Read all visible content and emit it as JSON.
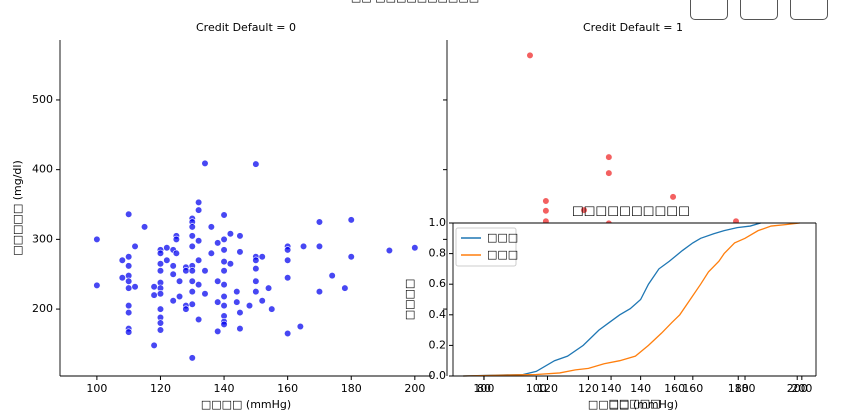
{
  "figure_title": "□□ □□□□□□□□□□",
  "chart_data": [
    {
      "type": "scatter",
      "title": "Credit Default = 0",
      "xlabel": "□□□□ (mmHg)",
      "ylabel": "□□□□□ (mg/dl)",
      "color": "#0000ee",
      "x": [
        100,
        100,
        108,
        108,
        110,
        110,
        110,
        110,
        110,
        110,
        110,
        110,
        110,
        110,
        112,
        112,
        115,
        118,
        118,
        118,
        120,
        120,
        120,
        120,
        120,
        120,
        120,
        120,
        120,
        120,
        120,
        122,
        122,
        124,
        124,
        124,
        124,
        125,
        125,
        125,
        126,
        126,
        128,
        128,
        128,
        128,
        130,
        130,
        130,
        130,
        130,
        130,
        130,
        130,
        130,
        130,
        130,
        132,
        132,
        132,
        132,
        132,
        132,
        134,
        134,
        134,
        136,
        136,
        138,
        138,
        138,
        138,
        140,
        140,
        140,
        140,
        140,
        140,
        140,
        140,
        140,
        140,
        140,
        142,
        142,
        144,
        144,
        145,
        145,
        145,
        145,
        148,
        150,
        150,
        150,
        150,
        150,
        150,
        152,
        152,
        154,
        155,
        160,
        160,
        160,
        160,
        160,
        164,
        165,
        170,
        170,
        170,
        174,
        178,
        180,
        180,
        192,
        200
      ],
      "values": [
        300,
        234,
        270,
        245,
        336,
        275,
        262,
        248,
        240,
        230,
        205,
        195,
        172,
        167,
        290,
        232,
        318,
        148,
        220,
        232,
        285,
        280,
        265,
        255,
        238,
        230,
        222,
        200,
        188,
        180,
        170,
        288,
        270,
        285,
        262,
        250,
        212,
        305,
        300,
        280,
        240,
        218,
        260,
        255,
        205,
        200,
        330,
        325,
        318,
        305,
        290,
        262,
        255,
        240,
        225,
        207,
        130,
        353,
        342,
        298,
        270,
        235,
        185,
        409,
        255,
        222,
        318,
        280,
        295,
        240,
        210,
        168,
        335,
        300,
        285,
        268,
        255,
        235,
        218,
        205,
        190,
        182,
        178,
        308,
        265,
        225,
        210,
        305,
        282,
        195,
        172,
        205,
        408,
        275,
        270,
        258,
        240,
        225,
        275,
        212,
        230,
        200,
        290,
        285,
        270,
        245,
        165,
        175,
        290,
        325,
        290,
        225,
        248,
        230,
        328,
        275,
        284,
        288
      ],
      "xlim": [
        88.4,
        205.4
      ],
      "ylim": [
        104,
        586
      ],
      "xticks": [
        100,
        120,
        140,
        160,
        180,
        200
      ],
      "yticks": [
        200,
        300,
        400,
        500
      ]
    },
    {
      "type": "scatter",
      "title": "Credit Default = 1",
      "xlabel": "□□□□ (mmHg)",
      "color": "#ee2222",
      "x": [
        114.5,
        139.3,
        139.3,
        119.5,
        119.5,
        119.5,
        131.5,
        139.3,
        159.5,
        179.3
      ],
      "values": [
        564,
        418,
        395,
        355,
        341,
        326,
        342,
        323,
        361,
        326
      ],
      "xlim": [
        88.4,
        205.4
      ],
      "ylim": [
        104,
        586
      ],
      "xticks": [
        100,
        120,
        140,
        160,
        180,
        200
      ],
      "yticks": [
        200,
        300,
        400,
        500
      ]
    },
    {
      "type": "line",
      "title": "□□□□□□□□□□",
      "xlabel": "□□□□□",
      "ylabel": "□□□□",
      "series": [
        {
          "name": "□□□",
          "color": "#1f77b4",
          "x": [
            72,
            95,
            100,
            107,
            112,
            118,
            124,
            128,
            132,
            136,
            140,
            143,
            147,
            151,
            156,
            160,
            163,
            168,
            172,
            177,
            182,
            186
          ],
          "values": [
            0,
            0.01,
            0.03,
            0.1,
            0.13,
            0.2,
            0.3,
            0.35,
            0.4,
            0.44,
            0.5,
            0.6,
            0.7,
            0.75,
            0.82,
            0.87,
            0.9,
            0.93,
            0.95,
            0.97,
            0.98,
            1.0
          ]
        },
        {
          "name": "□□□",
          "color": "#ff7f0e",
          "x": [
            72,
            100,
            109,
            115,
            120,
            126,
            132,
            138,
            143,
            148,
            152,
            155,
            159,
            163,
            166,
            170,
            172,
            176,
            180,
            185,
            190,
            196,
            201
          ],
          "values": [
            0,
            0.01,
            0.02,
            0.04,
            0.05,
            0.08,
            0.1,
            0.13,
            0.2,
            0.28,
            0.35,
            0.4,
            0.5,
            0.6,
            0.68,
            0.75,
            0.8,
            0.87,
            0.9,
            0.95,
            0.98,
            0.99,
            1.0
          ]
        }
      ],
      "xlim": [
        68.1,
        207.2
      ],
      "ylim": [
        0,
        1
      ],
      "xticks": [
        80,
        100,
        120,
        140,
        160,
        180,
        200
      ],
      "yticks": [
        {
          "value": 0,
          "label": "0.0"
        },
        {
          "value": 0.2,
          "label": "0.2"
        },
        {
          "value": 0.4,
          "label": "0.4"
        },
        {
          "value": 0.6,
          "label": "0.6"
        },
        {
          "value": 0.8,
          "label": "0.8"
        },
        {
          "value": 1,
          "label": "1.0"
        }
      ]
    }
  ]
}
